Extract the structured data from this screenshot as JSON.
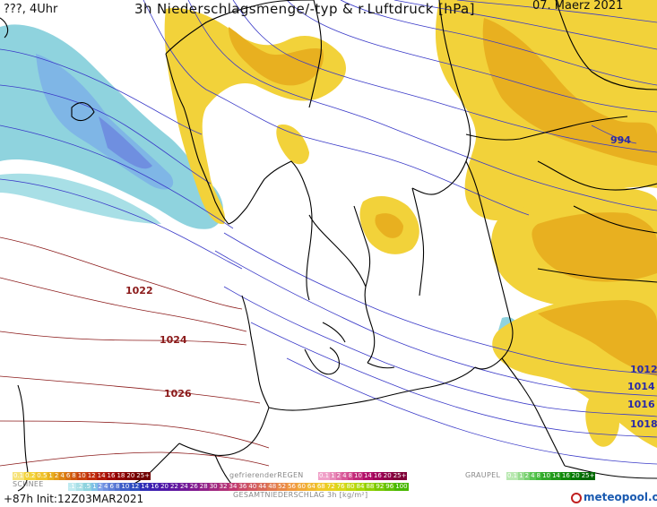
{
  "header": {
    "left": "???, 4Uhr",
    "title": "3h Niederschlagsmenge/-typ & r.Luftdruck [hPa]",
    "date": "07. Maerz 2021"
  },
  "isobar_labels": [
    {
      "text": "1022",
      "color": "#8b1a1a"
    },
    {
      "text": "1024",
      "color": "#8b1a1a"
    },
    {
      "text": "1026",
      "color": "#8b1a1a"
    },
    {
      "text": "994",
      "color": "#2a2aa8"
    },
    {
      "text": "1012",
      "color": "#2a2aa8"
    },
    {
      "text": "1014",
      "color": "#2a2aa8"
    },
    {
      "text": "1016",
      "color": "#2a2aa8"
    },
    {
      "text": "1018",
      "color": "#2a2aa8"
    }
  ],
  "legend": {
    "rain_values": [
      "0.1",
      "0.2",
      "0.5",
      "1",
      "2",
      "4",
      "6",
      "8",
      "10",
      "12",
      "14",
      "16",
      "18",
      "20",
      "25+"
    ],
    "freezing_label": "gefrierenderREGEN",
    "freezing_values": [
      "0.1",
      "1",
      "2",
      "4",
      "8",
      "10",
      "14",
      "16",
      "20",
      "25+"
    ],
    "graupel_label": "GRAUPEL",
    "graupel_values": [
      "0.1",
      "1",
      "2",
      "4",
      "8",
      "10",
      "14",
      "16",
      "20",
      "25+"
    ],
    "snow_label": "SCHNEE",
    "snow_values": [
      ".1",
      ".2",
      ".5",
      "1",
      "2",
      "4",
      "6",
      "8",
      "10",
      "12",
      "14",
      "16",
      "20",
      "22",
      "24",
      "26",
      "28",
      "30",
      "32",
      "34",
      "36",
      "40",
      "44",
      "48",
      "52",
      "56",
      "60",
      "64",
      "68",
      "72",
      "76",
      "80",
      "84",
      "88",
      "92",
      "96",
      "100"
    ],
    "total_label": "GESAMTNIEDERSCHLAG 3h [kg/m²]"
  },
  "footer": {
    "init": "+87h Init:12Z03MAR2021",
    "logo": "meteopool.org"
  },
  "colors": {
    "rain": "#f2d23a",
    "rain_dark": "#e8b020",
    "snow": "#8fd3de",
    "snow_dark": "#7fa0e8",
    "isobar_blue": "#3a3ac8",
    "isobar_red": "#8b1a1a",
    "coast": "#000000"
  }
}
